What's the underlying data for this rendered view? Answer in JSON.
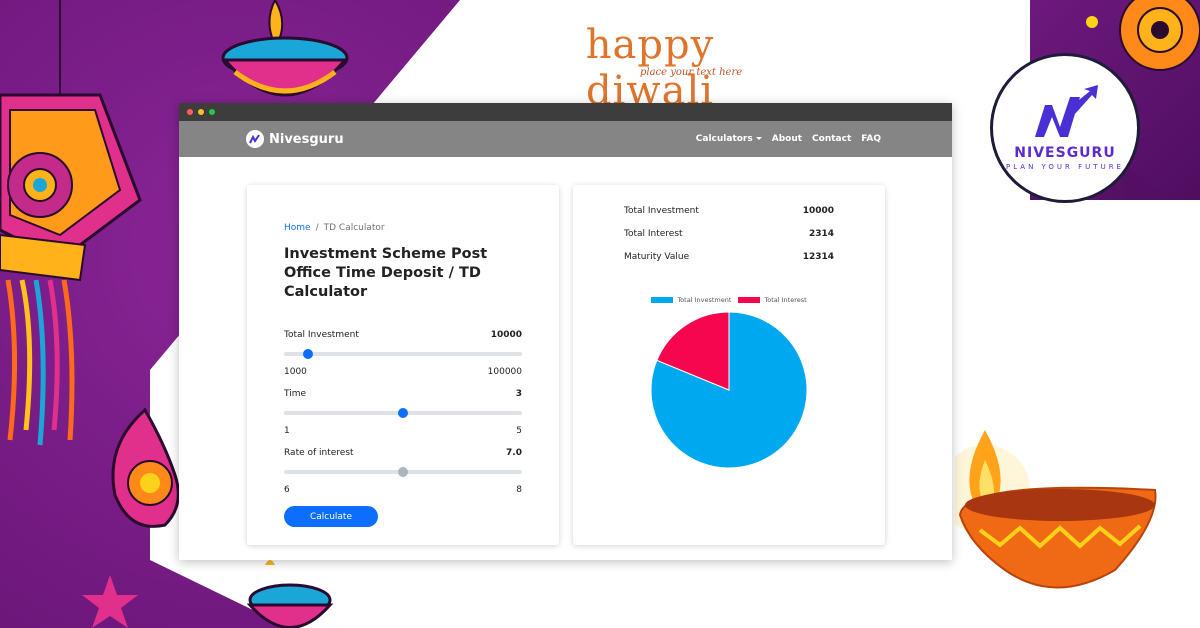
{
  "banner": {
    "title": "happy diwali",
    "subtitle": "place your text here",
    "brand_name": "NIVESGURU",
    "brand_tagline": "PLAN YOUR FUTURE"
  },
  "navbar": {
    "brand": "Nivesguru",
    "links": [
      "Calculators",
      "About",
      "Contact",
      "FAQ"
    ]
  },
  "breadcrumb": {
    "home": "Home",
    "separator": "/",
    "current": "TD Calculator"
  },
  "page_title": "Investment Scheme Post Office Time Deposit / TD Calculator",
  "sliders": [
    {
      "label": "Total Investment",
      "value": "10000",
      "min": "1000",
      "max": "100000",
      "position": 0.1,
      "thumb_color": "#0d6efd"
    },
    {
      "label": "Time",
      "value": "3",
      "min": "1",
      "max": "5",
      "position": 0.5,
      "thumb_color": "#0d6efd"
    },
    {
      "label": "Rate of interest",
      "value": "7.0",
      "min": "6",
      "max": "8",
      "position": 0.5,
      "thumb_color": "#adb5bd"
    }
  ],
  "calculate_label": "Calculate",
  "summary": [
    {
      "label": "Total Investment",
      "value": "10000"
    },
    {
      "label": "Total Interest",
      "value": "2314"
    },
    {
      "label": "Maturity Value",
      "value": "12314"
    }
  ],
  "chart_data": {
    "type": "pie",
    "categories": [
      "Total Investment",
      "Total Interest"
    ],
    "values": [
      10000,
      2314
    ],
    "colors": [
      "#00a8f0",
      "#f5064d"
    ],
    "legend": "top"
  },
  "colors": {
    "accent": "#0d6efd",
    "navbar": "#858585",
    "titlebar": "#3d3d3d",
    "diwali_orange": "#e0742a",
    "brand_purple": "#5b2ad1"
  }
}
